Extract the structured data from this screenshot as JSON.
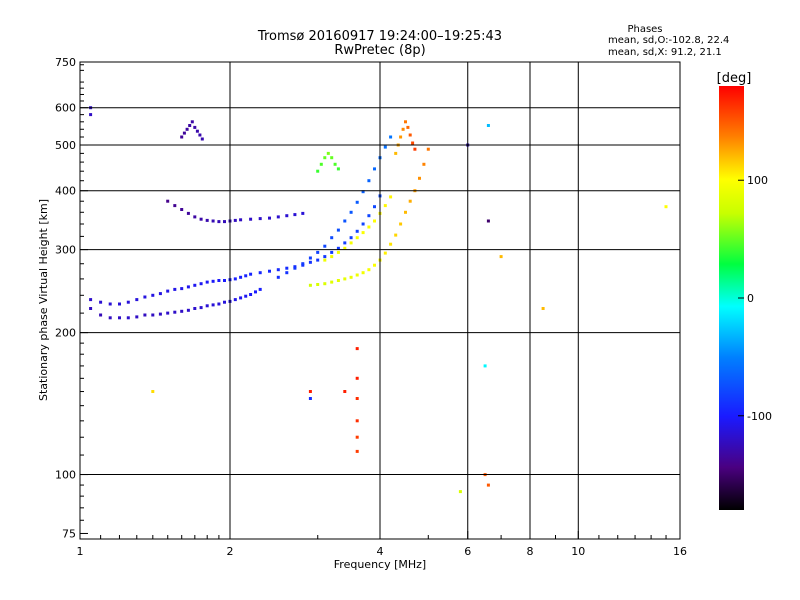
{
  "chart_data": {
    "type": "scatter",
    "title_line1": "Tromsø 20160917 19:24:00–19:25:43",
    "title_line2": "RwPretec (8p)",
    "phases_label": "Phases",
    "phases_o": "mean, sd,O:-102.8, 22.4",
    "phases_x": "mean, sd,X:  91.2, 21.1",
    "xlabel": "Frequency [MHz]",
    "ylabel": "Stationary phase Virtual Height [km]",
    "x_scale": "log",
    "y_scale": "log",
    "xlim": [
      1,
      16
    ],
    "ylim": [
      73,
      750
    ],
    "x_ticks": [
      {
        "v": 1,
        "label": "1"
      },
      {
        "v": 2,
        "label": "2"
      },
      {
        "v": 4,
        "label": "4"
      },
      {
        "v": 6,
        "label": "6"
      },
      {
        "v": 8,
        "label": "8"
      },
      {
        "v": 10,
        "label": "10"
      },
      {
        "v": 16,
        "label": "16"
      }
    ],
    "x_grid": [
      2,
      4,
      6,
      8,
      10
    ],
    "y_ticks": [
      {
        "v": 75,
        "label": "75"
      },
      {
        "v": 100,
        "label": "100"
      },
      {
        "v": 200,
        "label": "200"
      },
      {
        "v": 300,
        "label": "300"
      },
      {
        "v": 400,
        "label": "400"
      },
      {
        "v": 500,
        "label": "500"
      },
      {
        "v": 600,
        "label": "600"
      },
      {
        "v": 750,
        "label": "750"
      }
    ],
    "y_grid": [
      100,
      200,
      300,
      400,
      500,
      600
    ],
    "grid": true,
    "colorbar": {
      "label": "[deg]",
      "range": [
        -180,
        180
      ],
      "ticks": [
        {
          "v": 100,
          "label": "100"
        },
        {
          "v": 0,
          "label": "0"
        },
        {
          "v": -100,
          "label": "-100"
        }
      ]
    },
    "series": [
      {
        "x": [
          1.05,
          1.1,
          1.15,
          1.2,
          1.25,
          1.3,
          1.35,
          1.4,
          1.45,
          1.5,
          1.55,
          1.6,
          1.65,
          1.7,
          1.75,
          1.8,
          1.85,
          1.9,
          1.95,
          2.0,
          2.05,
          2.1,
          2.15,
          2.2,
          2.25,
          2.3
        ],
        "y": [
          225,
          218,
          215,
          215,
          215,
          216,
          218,
          218,
          219,
          220,
          221,
          222,
          223,
          225,
          226,
          228,
          229,
          230,
          232,
          233,
          235,
          237,
          239,
          241,
          244,
          247
        ],
        "phase": [
          -122,
          -125,
          -122,
          -120,
          -118,
          -120,
          -122,
          -121,
          -120,
          -118,
          -119,
          -120,
          -118,
          -117,
          -116,
          -115,
          -114,
          -113,
          -112,
          -110,
          -108,
          -106,
          -104,
          -102,
          -100,
          -98
        ]
      },
      {
        "x": [
          1.05,
          1.1,
          1.15,
          1.2,
          1.25,
          1.3,
          1.35,
          1.4,
          1.45,
          1.5,
          1.55,
          1.6,
          1.65,
          1.7,
          1.75,
          1.8,
          1.85,
          1.9,
          1.95,
          2.0,
          2.05,
          2.1,
          2.15,
          2.2,
          2.3,
          2.4,
          2.5,
          2.6,
          2.7,
          2.8,
          2.9,
          3.0,
          3.1,
          3.2,
          3.3,
          3.4,
          3.5,
          3.6,
          3.7,
          3.8,
          3.9,
          4.0
        ],
        "y": [
          235,
          232,
          230,
          230,
          232,
          235,
          238,
          240,
          242,
          245,
          247,
          248,
          250,
          252,
          254,
          256,
          257,
          258,
          258,
          259,
          260,
          262,
          264,
          266,
          268,
          270,
          272,
          274,
          276,
          278,
          282,
          285,
          290,
          296,
          302,
          310,
          318,
          328,
          340,
          354,
          370,
          390
        ],
        "phase": [
          -118,
          -116,
          -115,
          -114,
          -113,
          -112,
          -111,
          -110,
          -110,
          -109,
          -108,
          -107,
          -106,
          -105,
          -104,
          -103,
          -102,
          -101,
          -100,
          -99,
          -98,
          -97,
          -96,
          -95,
          -94,
          -93,
          -92,
          -91,
          -90,
          -89,
          -88,
          -87,
          -86,
          -85,
          -84,
          -83,
          -82,
          -81,
          -80,
          -79,
          -78,
          -76
        ]
      },
      {
        "x": [
          2.5,
          2.6,
          2.7,
          2.8,
          2.9,
          3.0,
          3.1,
          3.2,
          3.3,
          3.4,
          3.5,
          3.6,
          3.7,
          3.8,
          3.9,
          4.0,
          4.1,
          4.2
        ],
        "y": [
          262,
          268,
          274,
          280,
          288,
          296,
          305,
          318,
          330,
          345,
          360,
          378,
          398,
          420,
          445,
          470,
          495,
          520
        ],
        "phase": [
          -90,
          -88,
          -86,
          -84,
          -82,
          -80,
          -78,
          -76,
          -74,
          -72,
          -70,
          -68,
          -66,
          -64,
          -62,
          -60,
          -58,
          -56
        ]
      },
      {
        "x": [
          2.9,
          3.0,
          3.1,
          3.2,
          3.3,
          3.4,
          3.5,
          3.6,
          3.7,
          3.8,
          3.9,
          4.0,
          4.1,
          4.2,
          4.3,
          4.4,
          4.5,
          4.6,
          4.7,
          4.8,
          4.9,
          5.0
        ],
        "y": [
          252,
          253,
          254,
          256,
          258,
          260,
          262,
          265,
          268,
          272,
          278,
          285,
          295,
          308,
          322,
          340,
          360,
          380,
          400,
          425,
          455,
          490
        ],
        "phase": [
          78,
          80,
          82,
          84,
          86,
          88,
          90,
          92,
          94,
          96,
          98,
          100,
          104,
          108,
          112,
          116,
          120,
          124,
          128,
          132,
          136,
          140
        ]
      },
      {
        "x": [
          3.1,
          3.2,
          3.3,
          3.4,
          3.5,
          3.6,
          3.7,
          3.8,
          3.9,
          4.0,
          4.1,
          4.2
        ],
        "y": [
          285,
          290,
          296,
          302,
          310,
          318,
          326,
          335,
          345,
          358,
          372,
          388
        ],
        "phase": [
          92,
          93,
          94,
          95,
          96,
          97,
          98,
          99,
          100,
          101,
          102,
          103
        ]
      },
      {
        "x": [
          1.5,
          1.55,
          1.6,
          1.65,
          1.7,
          1.75,
          1.8,
          1.85,
          1.9,
          1.95,
          2.0,
          2.05,
          2.1,
          2.2,
          2.3,
          2.4,
          2.5,
          2.6,
          2.7,
          2.8
        ],
        "y": [
          380,
          372,
          365,
          358,
          352,
          348,
          346,
          345,
          344,
          344,
          345,
          346,
          347,
          348,
          349,
          350,
          352,
          354,
          356,
          358
        ],
        "phase": [
          -140,
          -138,
          -136,
          -134,
          -132,
          -130,
          -128,
          -126,
          -125,
          -124,
          -123,
          -122,
          -121,
          -120,
          -119,
          -118,
          -117,
          -116,
          -115,
          -114
        ]
      },
      {
        "x": [
          1.6,
          1.62,
          1.64,
          1.66,
          1.68,
          1.7,
          1.72,
          1.74,
          1.76
        ],
        "y": [
          520,
          530,
          540,
          550,
          560,
          545,
          535,
          525,
          515
        ],
        "phase": [
          -135,
          -134,
          -133,
          -132,
          -131,
          -130,
          -129,
          -128,
          -127
        ]
      },
      {
        "x": [
          3.0,
          3.05,
          3.1,
          3.15,
          3.2,
          3.25,
          3.3
        ],
        "y": [
          440,
          455,
          470,
          480,
          470,
          455,
          445
        ],
        "phase": [
          40,
          45,
          50,
          55,
          50,
          45,
          40
        ]
      },
      {
        "x": [
          4.3,
          4.35,
          4.4,
          4.45,
          4.5,
          4.55,
          4.6,
          4.65,
          4.7
        ],
        "y": [
          480,
          500,
          520,
          540,
          560,
          545,
          525,
          505,
          490
        ],
        "phase": [
          120,
          125,
          130,
          135,
          140,
          145,
          150,
          155,
          160
        ]
      },
      {
        "x": [
          3.6,
          3.6,
          3.6,
          3.6,
          3.6,
          3.6,
          2.9,
          2.9,
          3.4,
          5.8,
          6.5,
          6.5,
          6.6,
          7.0,
          8.5,
          1.4,
          1.05,
          1.05,
          15.0,
          6.0,
          6.6,
          6.6
        ],
        "y": [
          185,
          160,
          145,
          130,
          120,
          112,
          150,
          145,
          150,
          92,
          170,
          100,
          95,
          290,
          225,
          150,
          580,
          600,
          370,
          500,
          550,
          345
        ],
        "phase": [
          170,
          170,
          165,
          165,
          160,
          160,
          170,
          -90,
          170,
          80,
          -10,
          150,
          150,
          120,
          120,
          110,
          -120,
          -120,
          100,
          -120,
          -30,
          -150
        ]
      }
    ]
  }
}
